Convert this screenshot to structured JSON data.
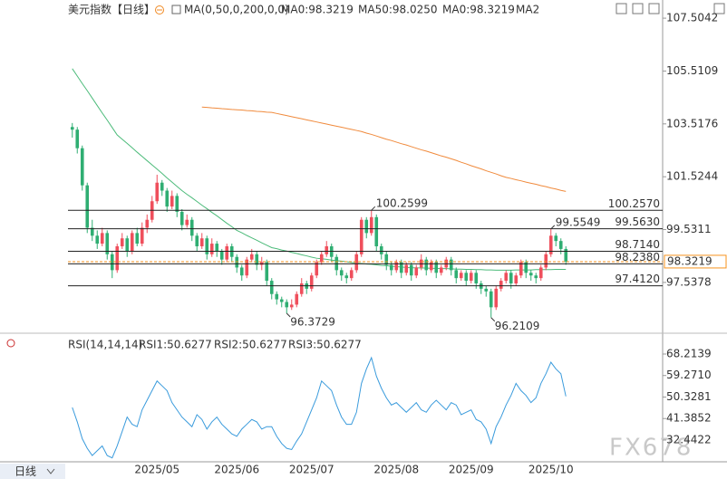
{
  "chart_data": [
    {
      "type": "candlestick",
      "title": "美元指数",
      "period": "【日线】",
      "indicator": "MA(0,50,0,200,0,0)",
      "legend": [
        {
          "text": "MA0:98.3219",
          "color": "#3a9bdc"
        },
        {
          "text": "MA50:98.0250",
          "color": "#4cbb7a"
        },
        {
          "text": "MA0:98.3219",
          "color": "#3a9bdc"
        },
        {
          "text": "MA2",
          "color": "#f08a3c"
        }
      ],
      "categories": [
        null,
        null,
        null,
        null,
        null,
        null,
        null,
        null,
        null,
        null,
        null,
        null,
        null,
        null,
        null,
        null,
        null,
        "2025/05",
        null,
        null,
        null,
        null,
        null,
        null,
        null,
        null,
        null,
        null,
        null,
        null,
        null,
        null,
        null,
        "2025/06",
        null,
        null,
        null,
        null,
        null,
        null,
        null,
        null,
        null,
        null,
        null,
        null,
        null,
        null,
        "2025/07",
        null,
        null,
        null,
        null,
        null,
        null,
        null,
        null,
        null,
        null,
        null,
        null,
        null,
        null,
        null,
        null,
        "2025/08",
        null,
        null,
        null,
        null,
        null,
        null,
        null,
        null,
        null,
        null,
        null,
        null,
        null,
        null,
        "2025/09",
        null,
        null,
        null,
        null,
        null,
        null,
        null,
        null,
        null,
        null,
        null,
        null,
        null,
        null,
        null,
        "2025/10",
        null,
        null,
        null
      ],
      "open": [
        103.4,
        103.3,
        102.6,
        101.2,
        99.6,
        99.3,
        99.0,
        99.4,
        98.6,
        98.0,
        98.9,
        99.2,
        98.7,
        99.4,
        99.0,
        99.6,
        99.9,
        100.6,
        101.3,
        101.0,
        100.4,
        100.8,
        100.2,
        99.7,
        99.9,
        99.3,
        98.9,
        99.2,
        98.6,
        99.0,
        98.7,
        98.4,
        98.9,
        98.5,
        98.1,
        97.8,
        98.4,
        98.6,
        98.2,
        98.3,
        97.6,
        97.1,
        96.9,
        96.8,
        96.6,
        96.7,
        97.1,
        97.5,
        97.3,
        97.8,
        98.3,
        98.6,
        98.9,
        98.5,
        98.0,
        97.8,
        97.7,
        98.0,
        98.6,
        99.9,
        99.4,
        100.0,
        98.9,
        98.6,
        98.2,
        98.0,
        98.3,
        97.9,
        98.2,
        97.8,
        98.1,
        98.4,
        98.0,
        98.3,
        97.9,
        98.1,
        98.4,
        98.0,
        97.7,
        97.9,
        97.6,
        97.9,
        97.5,
        97.3,
        97.2,
        96.6,
        97.3,
        97.6,
        97.9,
        97.5,
        97.8,
        98.3,
        97.9,
        97.8,
        97.7,
        98.1,
        98.6,
        99.3,
        99.1,
        98.8
      ],
      "high": [
        103.55,
        103.4,
        102.7,
        101.3,
        99.9,
        99.5,
        99.6,
        99.5,
        98.7,
        99.0,
        99.4,
        99.3,
        99.5,
        99.6,
        99.8,
        100.1,
        100.8,
        101.6,
        101.4,
        101.1,
        101.0,
        100.9,
        100.3,
        100.1,
        100.0,
        99.4,
        99.4,
        99.3,
        99.2,
        99.1,
        98.8,
        99.0,
        99.0,
        98.6,
        98.2,
        98.5,
        98.8,
        98.7,
        98.5,
        98.4,
        97.7,
        97.2,
        97.0,
        96.9,
        96.9,
        97.2,
        97.7,
        97.6,
        97.9,
        98.4,
        98.7,
        99.1,
        99.0,
        98.6,
        98.1,
        97.9,
        98.1,
        98.7,
        100.0,
        100.0,
        100.2599,
        100.1,
        99.0,
        98.7,
        98.3,
        98.4,
        98.4,
        98.3,
        98.3,
        98.2,
        98.6,
        98.5,
        98.4,
        98.4,
        98.2,
        98.5,
        98.5,
        98.1,
        98.0,
        98.0,
        98.0,
        98.0,
        97.6,
        97.4,
        97.3,
        97.4,
        97.7,
        98.0,
        98.0,
        97.9,
        98.4,
        98.4,
        98.0,
        97.9,
        98.2,
        98.7,
        99.5549,
        99.4,
        99.2,
        98.9
      ],
      "low": [
        103.0,
        102.4,
        101.0,
        99.4,
        99.1,
        98.8,
        98.9,
        98.4,
        97.7,
        97.9,
        98.8,
        98.5,
        98.6,
        98.9,
        98.9,
        99.4,
        99.8,
        100.5,
        100.8,
        100.2,
        100.3,
        100.0,
        99.5,
        99.6,
        99.1,
        98.7,
        98.8,
        98.4,
        98.5,
        98.5,
        98.2,
        98.3,
        98.3,
        97.9,
        97.6,
        97.7,
        98.3,
        98.0,
        98.0,
        97.4,
        96.9,
        96.7,
        96.6,
        96.3729,
        96.5,
        96.6,
        97.0,
        97.1,
        97.2,
        97.7,
        98.2,
        98.5,
        98.3,
        97.8,
        97.6,
        97.5,
        97.6,
        97.9,
        98.5,
        99.2,
        99.3,
        98.7,
        98.4,
        98.0,
        97.8,
        97.9,
        97.7,
        97.8,
        97.6,
        97.7,
        98.0,
        97.8,
        97.9,
        97.7,
        97.8,
        98.0,
        97.8,
        97.5,
        97.6,
        97.4,
        97.5,
        97.3,
        97.1,
        97.0,
        96.2109,
        96.5,
        97.2,
        97.5,
        97.3,
        97.4,
        97.7,
        97.7,
        97.6,
        97.5,
        97.6,
        98.0,
        98.5,
        98.9,
        98.6,
        98.2
      ],
      "close": [
        103.3,
        102.6,
        101.2,
        99.6,
        99.3,
        99.0,
        99.4,
        98.6,
        98.0,
        98.9,
        99.2,
        98.7,
        99.4,
        99.0,
        99.6,
        99.9,
        100.6,
        101.3,
        101.0,
        100.4,
        100.8,
        100.2,
        99.7,
        99.9,
        99.3,
        98.9,
        99.2,
        98.6,
        99.0,
        98.7,
        98.4,
        98.9,
        98.5,
        98.1,
        97.8,
        98.4,
        98.6,
        98.2,
        98.3,
        97.6,
        97.1,
        96.9,
        96.8,
        96.6,
        96.7,
        97.1,
        97.5,
        97.3,
        97.8,
        98.3,
        98.6,
        98.9,
        98.5,
        98.0,
        97.8,
        97.7,
        98.0,
        98.6,
        99.9,
        99.4,
        100.0,
        98.9,
        98.6,
        98.2,
        98.0,
        98.3,
        97.9,
        98.2,
        97.8,
        98.1,
        98.4,
        98.0,
        98.3,
        97.9,
        98.1,
        98.4,
        98.0,
        97.7,
        97.9,
        97.6,
        97.9,
        97.5,
        97.3,
        97.2,
        96.6,
        97.3,
        97.6,
        97.9,
        97.5,
        97.8,
        98.3,
        97.9,
        97.8,
        97.7,
        98.1,
        98.6,
        99.3,
        99.1,
        98.8,
        98.3219
      ],
      "up_color": "#ef4f5c",
      "down_color": "#2fae72",
      "series": [
        {
          "color": "#4cbb7a",
          "values": [
            105.6,
            105.32,
            105.04,
            104.77,
            104.49,
            104.21,
            103.93,
            103.66,
            103.38,
            103.1,
            102.94,
            102.78,
            102.62,
            102.45,
            102.29,
            102.13,
            101.97,
            101.81,
            101.65,
            101.48,
            101.32,
            101.16,
            101.0,
            100.86,
            100.73,
            100.59,
            100.45,
            100.32,
            100.18,
            100.05,
            99.91,
            99.77,
            99.64,
            99.5,
            99.41,
            99.31,
            99.22,
            99.13,
            99.03,
            98.94,
            98.85,
            98.81,
            98.76,
            98.72,
            98.67,
            98.63,
            98.58,
            98.54,
            98.49,
            98.45,
            98.43,
            98.41,
            98.38,
            98.36,
            98.34,
            98.32,
            98.29,
            98.27,
            98.25,
            98.23,
            98.22,
            98.2,
            98.18,
            98.17,
            98.15,
            98.13,
            98.12,
            98.1,
            98.09,
            98.09,
            98.08,
            98.08,
            98.07,
            98.07,
            98.06,
            98.06,
            98.05,
            98.04,
            98.04,
            98.03,
            98.03,
            98.02,
            98.02,
            98.01,
            98.01,
            98.0,
            98.0,
            98.0,
            98.0,
            98.01,
            98.01,
            98.01,
            98.01,
            98.02,
            98.02,
            98.02,
            98.02,
            98.03,
            98.03,
            98.03
          ]
        },
        {
          "color": "#f08a3c",
          "values": [
            null,
            null,
            null,
            null,
            null,
            null,
            null,
            null,
            null,
            null,
            null,
            null,
            null,
            null,
            null,
            null,
            null,
            null,
            null,
            null,
            null,
            null,
            null,
            null,
            null,
            null,
            104.15,
            104.14,
            104.12,
            104.11,
            104.09,
            104.08,
            104.06,
            104.05,
            104.04,
            104.02,
            104.01,
            103.99,
            103.98,
            103.96,
            103.95,
            103.91,
            103.87,
            103.83,
            103.79,
            103.75,
            103.71,
            103.67,
            103.63,
            103.59,
            103.55,
            103.51,
            103.47,
            103.43,
            103.39,
            103.35,
            103.31,
            103.27,
            103.23,
            103.17,
            103.12,
            103.06,
            103.0,
            102.94,
            102.89,
            102.83,
            102.77,
            102.72,
            102.66,
            102.6,
            102.54,
            102.49,
            102.43,
            102.37,
            102.31,
            102.26,
            102.2,
            102.14,
            102.07,
            102.01,
            101.94,
            101.88,
            101.82,
            101.75,
            101.69,
            101.63,
            101.56,
            101.5,
            101.46,
            101.41,
            101.37,
            101.32,
            101.28,
            101.24,
            101.19,
            101.15,
            101.1,
            101.06,
            101.01,
            100.97
          ]
        }
      ],
      "ylim": [
        95.69,
        108.19
      ],
      "yticks": [
        97.5378,
        99.5311,
        101.5244,
        103.5176,
        105.5109,
        107.5042
      ],
      "levels": [
        {
          "value": 100.257,
          "label": "100.2570"
        },
        {
          "value": 99.563,
          "label": "99.5630"
        },
        {
          "value": 98.714,
          "label": "98.7140"
        },
        {
          "value": 98.238,
          "label": "98.2380"
        },
        {
          "value": 97.412,
          "label": "97.4120"
        }
      ],
      "level_color": "#222222",
      "last_price_color": "#f7931e",
      "high_labels": [
        100.2599,
        99.5549
      ],
      "high_label_color": "#e8464f",
      "low_labels": [
        96.3729,
        96.2109
      ],
      "low_label_color": "#3aa86a",
      "button": "日线",
      "watermark": "FX678"
    },
    {
      "type": "line",
      "title": "RSI(14,14,14)",
      "legend": [
        {
          "text": "RSI1:50.6277",
          "color": "#3a9bdc"
        },
        {
          "text": "RSI2:50.6277",
          "color": "#4cbb7a"
        },
        {
          "text": "RSI3:50.6277",
          "color": "#35b5b0"
        }
      ],
      "series": [
        {
          "color": "#3a9bdc",
          "values": [
            46,
            40,
            33,
            29,
            26,
            28,
            30,
            26,
            25,
            30,
            36,
            42,
            39,
            38,
            45,
            49,
            53,
            57,
            55,
            53,
            48,
            45,
            42,
            40,
            38,
            43,
            41,
            37,
            40,
            42,
            39,
            37,
            35,
            34,
            37,
            39,
            41,
            40,
            37,
            38,
            38,
            34,
            31,
            29,
            28.5,
            32,
            35,
            40,
            45,
            50,
            57,
            55,
            53,
            47,
            42,
            39,
            39,
            44,
            56,
            62,
            66.7,
            59,
            54,
            50,
            47,
            48,
            46,
            44,
            46,
            48,
            45,
            44,
            47,
            49,
            47,
            45,
            48,
            47,
            43,
            44,
            45,
            41,
            40,
            37,
            31,
            38,
            42,
            47,
            51,
            56,
            53,
            51,
            48,
            50,
            56,
            60,
            64.8,
            62,
            60,
            50.6277
          ]
        }
      ],
      "ylim": [
        23.4,
        73.1
      ],
      "yticks": [
        32.4422,
        41.3852,
        50.3281,
        {
          "value": 59.271,
          "label": "59.2710"
        },
        68.2139
      ]
    }
  ]
}
